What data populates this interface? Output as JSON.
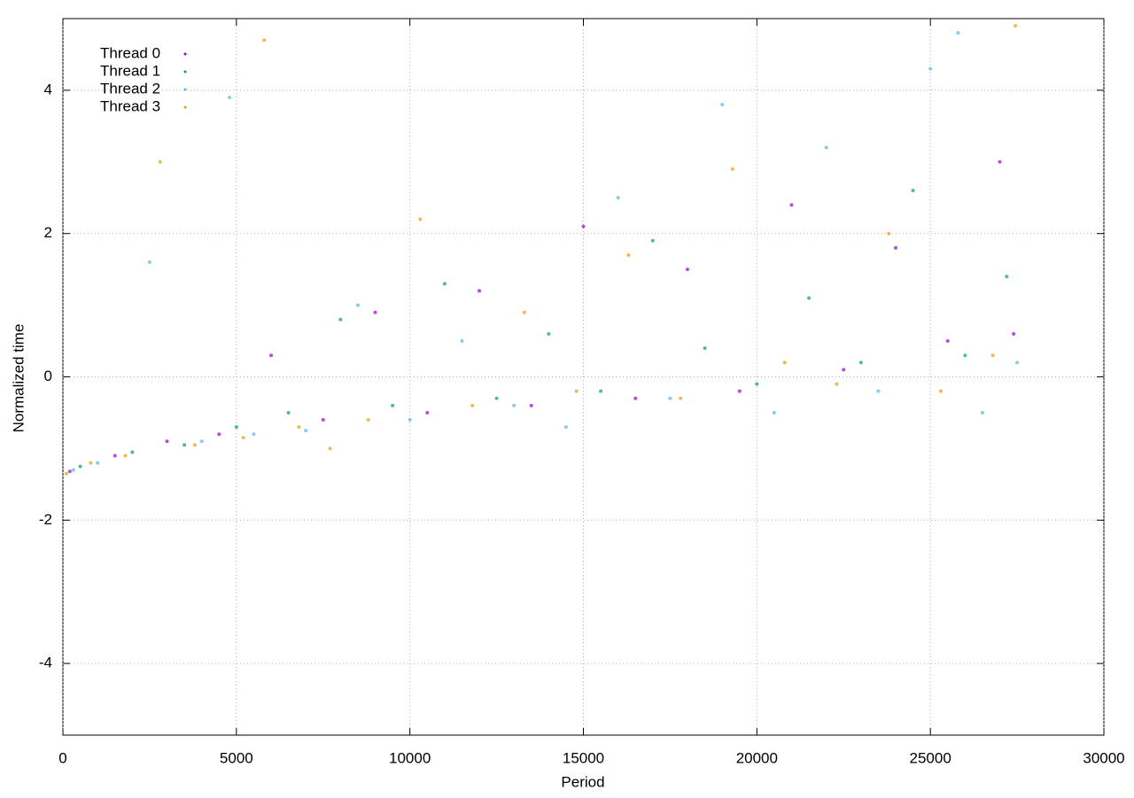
{
  "chart_data": {
    "type": "scatter",
    "x_label": "Period",
    "y_label": "Normalized time",
    "xlim": [
      0,
      30000
    ],
    "ylim": [
      -5,
      5
    ],
    "xticks": [
      0,
      5000,
      10000,
      15000,
      20000,
      25000,
      30000
    ],
    "yticks": [
      -4,
      -2,
      0,
      2,
      4
    ],
    "grid": true,
    "legend": "top-left",
    "series": [
      {
        "name": "Thread 0",
        "color": "#9400d3",
        "x": [
          200,
          1500,
          3000,
          4500,
          6000,
          7500,
          9000,
          10500,
          12000,
          13500,
          15000,
          16500,
          18000,
          19500,
          21000,
          22500,
          24000,
          25500,
          27000,
          27400
        ],
        "values": [
          -1.32,
          -1.1,
          -0.9,
          -0.8,
          0.3,
          -0.6,
          0.9,
          -0.5,
          1.2,
          -0.4,
          2.1,
          -0.3,
          1.5,
          -0.2,
          2.4,
          0.1,
          1.8,
          0.5,
          3.0,
          0.6
        ]
      },
      {
        "name": "Thread 1",
        "color": "#009e73",
        "x": [
          500,
          2000,
          3500,
          5000,
          6500,
          8000,
          9500,
          11000,
          12500,
          14000,
          15500,
          17000,
          18500,
          20000,
          21500,
          23000,
          24500,
          26000,
          27200
        ],
        "values": [
          -1.25,
          -1.05,
          -0.95,
          -0.7,
          -0.5,
          0.8,
          -0.4,
          1.3,
          -0.3,
          0.6,
          -0.2,
          1.9,
          0.4,
          -0.1,
          1.1,
          0.2,
          2.6,
          0.3,
          1.4
        ]
      },
      {
        "name": "Thread 2",
        "color": "#56b4e9",
        "x": [
          300,
          1000,
          2500,
          4000,
          5500,
          7000,
          8500,
          10000,
          11500,
          13000,
          14500,
          16000,
          17500,
          19000,
          20500,
          22000,
          23500,
          25000,
          26500,
          27500,
          4800,
          25800
        ],
        "values": [
          -1.3,
          -1.2,
          1.6,
          -0.9,
          -0.8,
          -0.75,
          1.0,
          -0.6,
          0.5,
          -0.4,
          -0.7,
          2.5,
          -0.3,
          3.8,
          -0.5,
          3.2,
          -0.2,
          4.3,
          -0.5,
          0.2,
          3.9,
          4.8
        ]
      },
      {
        "name": "Thread 3",
        "color": "#e69f00",
        "x": [
          100,
          800,
          1800,
          2800,
          3800,
          5200,
          6800,
          7700,
          8800,
          10300,
          11800,
          13300,
          14800,
          16300,
          17800,
          19300,
          20800,
          22300,
          23800,
          25300,
          26800,
          27450,
          5800
        ],
        "values": [
          -1.35,
          -1.2,
          -1.1,
          3.0,
          -0.95,
          -0.85,
          -0.7,
          -1.0,
          -0.6,
          2.2,
          -0.4,
          0.9,
          -0.2,
          1.7,
          -0.3,
          2.9,
          0.2,
          -0.1,
          2.0,
          -0.2,
          0.3,
          4.9,
          4.7
        ]
      }
    ]
  }
}
